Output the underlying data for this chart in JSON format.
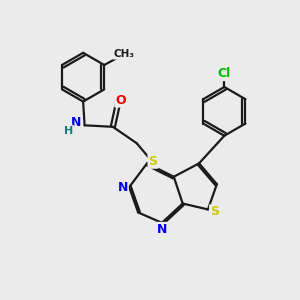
{
  "background_color": "#ebebeb",
  "bond_color": "#1a1a1a",
  "bond_width": 1.6,
  "atom_colors": {
    "N": "#0000ee",
    "O": "#ee0000",
    "S": "#cccc00",
    "Cl": "#00bb00",
    "C": "#1a1a1a",
    "H": "#008080"
  },
  "font_size": 9,
  "fig_size": [
    3.0,
    3.0
  ],
  "dpi": 100
}
